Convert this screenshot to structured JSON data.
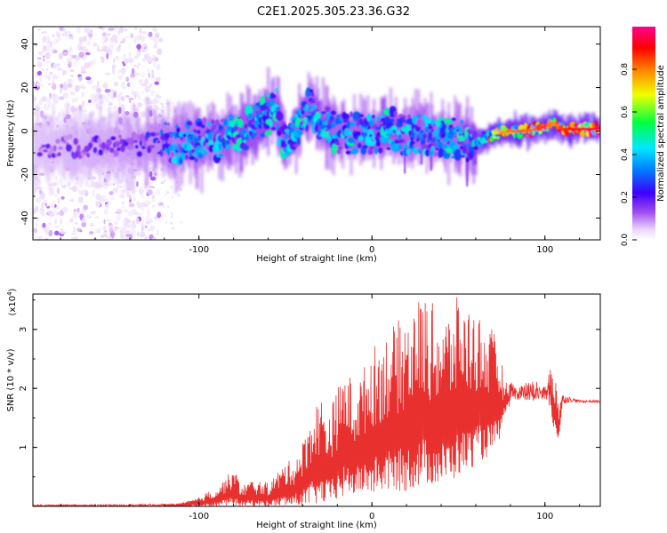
{
  "title": "C2E1.2025.305.23.36.G32",
  "chart_data": [
    {
      "type": "heatmap",
      "name": "spectrogram",
      "xlabel": "Height of straight line (km)",
      "ylabel": "Frequency (Hz)",
      "xlim": [
        -196,
        132
      ],
      "ylim": [
        -50,
        48
      ],
      "x_ticks": [
        -100,
        0,
        100
      ],
      "y_ticks": [
        -40,
        -20,
        0,
        20,
        40
      ],
      "colorbar": {
        "label": "Normalized spectral amplitude",
        "range": [
          0.0,
          1.0
        ],
        "ticks": [
          "0.0",
          "0.2",
          "0.4",
          "0.6",
          "0.8"
        ],
        "colormap": [
          "#ffffff",
          "#e9d4fb",
          "#a04cf0",
          "#3c00ff",
          "#0080ff",
          "#00e8ff",
          "#00ff40",
          "#f0ff00",
          "#ff8000",
          "#ff0000",
          "#ff0090"
        ]
      },
      "ridge": {
        "x": [
          -196,
          -150,
          -130,
          -110,
          -90,
          -80,
          -70,
          -60,
          -55,
          -50,
          -45,
          -40,
          -35,
          -30,
          -20,
          -10,
          0,
          10,
          20,
          30,
          40,
          50,
          60,
          70,
          80,
          90,
          100,
          105,
          110,
          120,
          132
        ],
        "frequency": [
          -7,
          -7,
          -6,
          -5,
          -4,
          -2,
          2,
          8,
          10,
          -7,
          0,
          8,
          10,
          4,
          -1,
          -1,
          -1,
          1,
          -2,
          -1,
          -3,
          -3,
          -6,
          -1,
          0,
          0,
          2,
          4,
          1,
          1,
          1
        ],
        "peak_amplitude": [
          0.25,
          0.3,
          0.35,
          0.4,
          0.42,
          0.45,
          0.45,
          0.5,
          0.45,
          0.45,
          0.45,
          0.45,
          0.45,
          0.45,
          0.42,
          0.42,
          0.45,
          0.45,
          0.42,
          0.42,
          0.42,
          0.42,
          0.5,
          0.75,
          0.85,
          0.85,
          0.9,
          0.8,
          0.9,
          0.95,
          1.0
        ]
      },
      "noise_region_x": [
        -196,
        -122
      ]
    },
    {
      "type": "line",
      "name": "snr",
      "xlabel": "Height of straight line (km)",
      "ylabel": "SNR (10 * v/v)",
      "y_scale_label": "(x10",
      "y_scale_exponent": "4",
      "xlim": [
        -196,
        132
      ],
      "ylim": [
        0,
        36000
      ],
      "x_ticks": [
        -100,
        0,
        100
      ],
      "y_ticks": [
        1,
        2,
        3
      ],
      "color": "#e8302f",
      "envelope": {
        "x": [
          -196,
          -150,
          -120,
          -110,
          -100,
          -95,
          -90,
          -80,
          -75,
          -70,
          -60,
          -50,
          -45,
          -40,
          -35,
          -30,
          -25,
          -20,
          -15,
          -10,
          0,
          10,
          20,
          25,
          30,
          40,
          45,
          50,
          55,
          60,
          65,
          70,
          75,
          77,
          80,
          90,
          100,
          105,
          108,
          110,
          115,
          120,
          132
        ],
        "upper": [
          300,
          300,
          400,
          600,
          1500,
          2500,
          3000,
          6500,
          3500,
          4500,
          4000,
          7500,
          8000,
          11000,
          16000,
          19000,
          16000,
          20000,
          24000,
          20000,
          27000,
          30000,
          33000,
          35000,
          36000,
          33000,
          33000,
          36000,
          34000,
          34000,
          31000,
          30000,
          25000,
          21000,
          21000,
          21000,
          22000,
          24000,
          18000,
          19000,
          18500,
          18000,
          18000
        ],
        "lower": [
          0,
          0,
          0,
          0,
          0,
          0,
          0,
          0,
          0,
          0,
          0,
          0,
          0,
          100,
          200,
          300,
          500,
          1000,
          1500,
          2000,
          2000,
          2500,
          2500,
          3000,
          3500,
          3500,
          4000,
          5000,
          6000,
          7000,
          8000,
          9000,
          12000,
          16000,
          17000,
          16500,
          16000,
          13000,
          11000,
          17000,
          17500,
          17500,
          17500
        ]
      }
    }
  ]
}
